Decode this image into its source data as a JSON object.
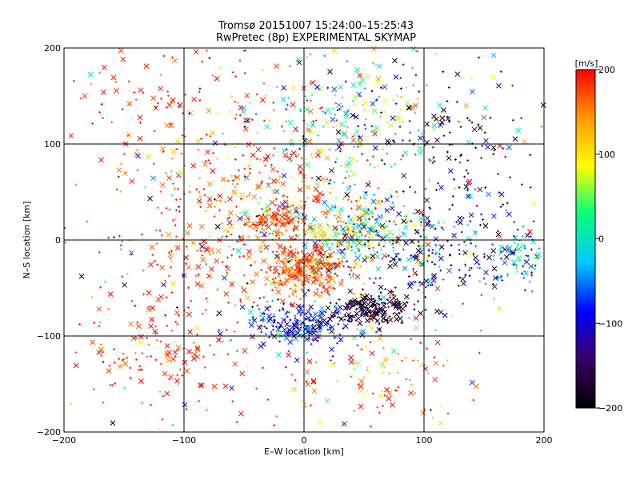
{
  "chart_data": {
    "type": "scatter",
    "title": "Tromsø 20151007 15:24:00–15:25:43",
    "subtitle": "RwPretec (8p) EXPERIMENTAL SKYMAP",
    "xlabel": "E–W location [km]",
    "ylabel": "N–S location [km]",
    "xlim": [
      -200,
      200
    ],
    "ylim": [
      -200,
      200
    ],
    "x_ticks": [
      -200,
      -100,
      0,
      100,
      200
    ],
    "y_ticks": [
      -200,
      -100,
      0,
      100,
      200
    ],
    "grid": true,
    "colorbar": {
      "label": "[m/s]",
      "range": [
        -200,
        200
      ],
      "ticks": [
        200,
        100,
        0,
        -100,
        -200
      ],
      "colors": [
        "#000000",
        "#3a0066",
        "#0000ff",
        "#00c8ff",
        "#00ff80",
        "#ffff00",
        "#ff9900",
        "#ff0000"
      ]
    },
    "marker_types": [
      "x",
      "+"
    ],
    "clusters": [
      {
        "cx": 0,
        "cy": -30,
        "sx": 18,
        "sy": 12,
        "n": 260,
        "vmean": 170,
        "vspread": 30
      },
      {
        "cx": -5,
        "cy": -88,
        "sx": 22,
        "sy": 10,
        "n": 230,
        "vmean": -80,
        "vspread": 40
      },
      {
        "cx": 55,
        "cy": -72,
        "sx": 18,
        "sy": 9,
        "n": 200,
        "vmean": -170,
        "vspread": 25
      },
      {
        "cx": 40,
        "cy": 8,
        "sx": 30,
        "sy": 18,
        "n": 240,
        "vmean": 20,
        "vspread": 70
      },
      {
        "cx": 20,
        "cy": 25,
        "sx": 40,
        "sy": 30,
        "n": 170,
        "vmean": 120,
        "vspread": 80
      },
      {
        "cx": -25,
        "cy": 20,
        "sx": 12,
        "sy": 6,
        "n": 70,
        "vmean": 180,
        "vspread": 20
      },
      {
        "cx": 30,
        "cy": 130,
        "sx": 45,
        "sy": 35,
        "n": 240,
        "vmean": 20,
        "vspread": 110
      },
      {
        "cx": -60,
        "cy": 60,
        "sx": 50,
        "sy": 50,
        "n": 220,
        "vmean": 170,
        "vspread": 40
      },
      {
        "cx": 120,
        "cy": -20,
        "sx": 40,
        "sy": 20,
        "n": 180,
        "vmean": -120,
        "vspread": 80
      },
      {
        "cx": 130,
        "cy": 80,
        "sx": 45,
        "sy": 60,
        "n": 180,
        "vmean": -150,
        "vspread": 70
      },
      {
        "cx": -120,
        "cy": -115,
        "sx": 30,
        "sy": 30,
        "n": 130,
        "vmean": 185,
        "vspread": 20
      },
      {
        "cx": -80,
        "cy": -20,
        "sx": 55,
        "sy": 40,
        "n": 140,
        "vmean": 175,
        "vspread": 30
      },
      {
        "cx": 60,
        "cy": -140,
        "sx": 40,
        "sy": 30,
        "n": 110,
        "vmean": 160,
        "vspread": 60
      },
      {
        "cx": 180,
        "cy": -15,
        "sx": 12,
        "sy": 10,
        "n": 50,
        "vmean": -10,
        "vspread": 50
      },
      {
        "cx": -130,
        "cy": 150,
        "sx": 40,
        "sy": 30,
        "n": 70,
        "vmean": 190,
        "vspread": 20
      },
      {
        "cx": 0,
        "cy": 0,
        "sx": 110,
        "sy": 110,
        "n": 320,
        "vmean": 40,
        "vspread": 170
      }
    ]
  }
}
